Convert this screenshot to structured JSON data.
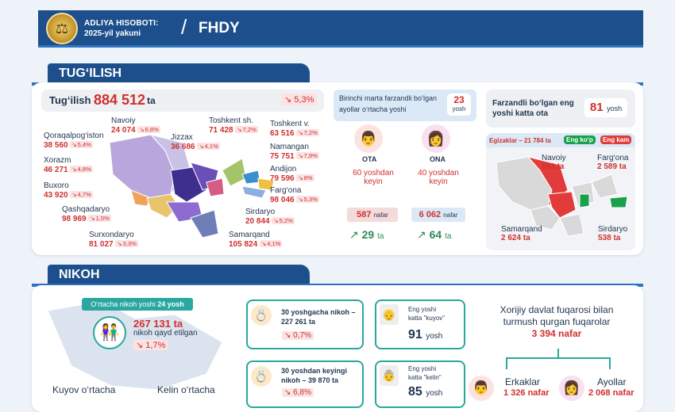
{
  "header": {
    "line1": "ADLIYA HISOBOTI:",
    "line2": "2025-yil yakuni",
    "slash": "/",
    "title": "FHDY"
  },
  "birth": {
    "tab": "TUG‘ILISH",
    "total_label": "Tug‘ilish",
    "total_value": "884 512",
    "total_unit": "ta",
    "total_change": "5,3%",
    "regions": [
      {
        "name": "Navoiy",
        "value": "24 074",
        "change": "6,8%"
      },
      {
        "name": "Toshkent sh.",
        "value": "71 428",
        "change": "7,2%"
      },
      {
        "name": "Toshkent v.",
        "value": "63 516",
        "change": "7,2%"
      },
      {
        "name": "Qoraqalpog‘iston",
        "value": "38 560",
        "change": "5,4%"
      },
      {
        "name": "Jizzax",
        "value": "36 686",
        "change": "4,1%"
      },
      {
        "name": "Namangan",
        "value": "75 751",
        "change": "7,9%"
      },
      {
        "name": "Xorazm",
        "value": "46 271",
        "change": "4,8%"
      },
      {
        "name": "Andijon",
        "value": "79 596",
        "change": "8%"
      },
      {
        "name": "Buxoro",
        "value": "43 920",
        "change": "4,7%"
      },
      {
        "name": "Farg‘ona",
        "value": "98 046",
        "change": "5,3%"
      },
      {
        "name": "Qashqadaryo",
        "value": "98 969",
        "change": "1,5%"
      },
      {
        "name": "Sirdaryo",
        "value": "20 844",
        "change": "5,2%"
      },
      {
        "name": "Surxondaryo",
        "value": "81 027",
        "change": "3,3%"
      },
      {
        "name": "Samarqand",
        "value": "105 824",
        "change": "4,1%"
      }
    ],
    "first_child": {
      "title": "Birinchi marta farzandli bo‘lgan ayollar o‘rtacha yoshi",
      "age": "23",
      "age_unit": "yosh",
      "father": {
        "label": "OTA",
        "age_text": "60 yoshdan keyin",
        "count": "587",
        "count_unit": "nafar",
        "growth": "29",
        "growth_unit": "ta"
      },
      "mother": {
        "label": "ONA",
        "age_text": "40 yoshdan keyin",
        "count": "6 062",
        "count_unit": "nafar",
        "growth": "64",
        "growth_unit": "ta"
      }
    },
    "oldest_father": {
      "title": "Farzandli bo‘lgan eng yoshi katta ota",
      "age": "81",
      "age_unit": "yosh",
      "twins_label": "Egizaklar – 21 784 ta",
      "most_label": "Eng ko‘p",
      "least_label": "Eng kam",
      "most_color": "#19a04b",
      "least_color": "#e23b3b",
      "regions": [
        {
          "name": "Navoiy",
          "value": "553 ta",
          "type": "most"
        },
        {
          "name": "Farg‘ona",
          "value": "2 589 ta",
          "type": "most"
        },
        {
          "name": "Samarqand",
          "value": "2 624 ta",
          "type": "most"
        },
        {
          "name": "Sirdaryo",
          "value": "538 ta",
          "type": "least"
        }
      ]
    }
  },
  "marriage": {
    "tab": "NIKOH",
    "avg_age_text": "O‘rtacha nikoh yoshi",
    "avg_age": "24 yosh",
    "registered_value": "267 131 ta",
    "registered_text": "nikoh qayd etilgan",
    "registered_change": "1,7%",
    "groom_avg": "Kuyov o‘rtacha",
    "bride_avg": "Kelin o‘rtacha",
    "before30": {
      "line1": "30 yoshgacha nikoh –",
      "value": "227 261 ta",
      "change": "0,7%"
    },
    "after30": {
      "line1": "30 yoshdan keyingi",
      "line2": "nikoh – 39 870 ta",
      "change": "6,8%"
    },
    "oldest_groom": {
      "line1": "Eng yoshi",
      "line2": "katta \"kuyov\"",
      "age": "91",
      "unit": "yosh"
    },
    "oldest_bride": {
      "line1": "Eng yoshi",
      "line2": "katta \"kelin\"",
      "age": "85",
      "unit": "yosh"
    },
    "foreign": {
      "line1": "Xorijiy davlat fuqarosi bilan",
      "line2": "turmush qurgan fuqarolar",
      "value": "3 394 nafar",
      "men_label": "Erkaklar",
      "men_value": "1 326 nafar",
      "women_label": "Ayollar",
      "women_value": "2 068 nafar"
    }
  }
}
